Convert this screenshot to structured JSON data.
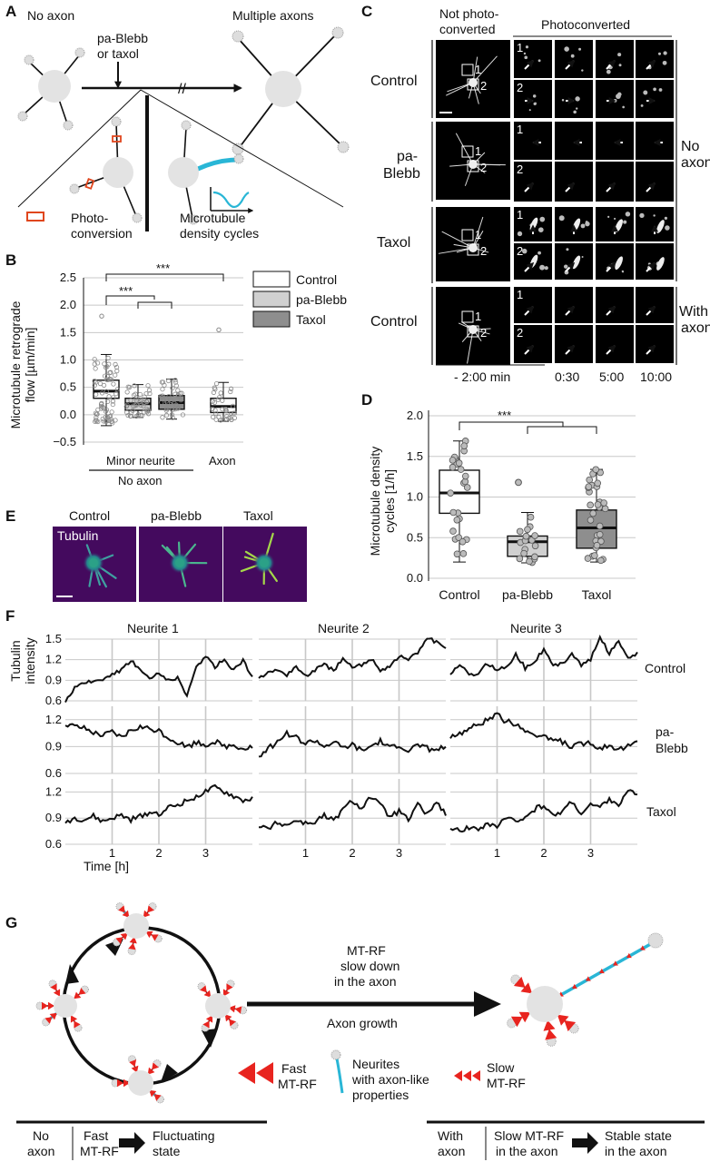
{
  "panels": {
    "A": {
      "letter": "A",
      "no_axon": "No axon",
      "drug": [
        "pa-Blebb",
        "or taxol"
      ],
      "multiple_axons": "Multiple axons",
      "photoconversion": [
        "Photo-",
        "conversion"
      ],
      "mt_density": [
        "Microtubule",
        "density cycles"
      ]
    },
    "B": {
      "letter": "B",
      "ylabel": [
        "Microtubule retrograde",
        "flow [µm/min]"
      ],
      "yticks": [
        "2.5",
        "2.0",
        "1.5",
        "1.0",
        "0.5",
        "0.0",
        "−0.5"
      ],
      "xlabel_minor": "Minor neurite",
      "xlabel_noaxon": "No axon",
      "xlabel_axon": "Axon",
      "sig": [
        "***",
        "***"
      ],
      "legend": [
        "Control",
        "pa-Blebb",
        "Taxol"
      ]
    },
    "C": {
      "letter": "C",
      "not_photo": [
        "Not photo-",
        "converted"
      ],
      "photo": "Photoconverted",
      "rows": [
        "Control",
        "pa-",
        "Blebb",
        "Taxol",
        "Control"
      ],
      "right": [
        "No",
        "axon",
        "With",
        "axon"
      ],
      "times": [
        "- 2:00  min",
        "0:30",
        "5:00",
        "10:00"
      ]
    },
    "D": {
      "letter": "D",
      "ylabel": [
        "Microtubule density",
        "cycles [1/h]"
      ],
      "yticks": [
        "2.0",
        "1.5",
        "1.0",
        "0.5",
        "0.0"
      ],
      "xticks": [
        "Control",
        "pa-Blebb",
        "Taxol"
      ],
      "sig": "***"
    },
    "E": {
      "letter": "E",
      "titles": [
        "Control",
        "pa-Blebb",
        "Taxol"
      ],
      "tubulin": "Tubulin"
    },
    "F": {
      "letter": "F",
      "columns": [
        "Neurite 1",
        "Neurite 2",
        "Neurite 3"
      ],
      "ylabel": [
        "Tubulin",
        "intensity"
      ],
      "yt_control": [
        "1.5",
        "1.2",
        "0.9",
        "0.6"
      ],
      "yt_blebb": [
        "1.2",
        "0.9",
        "0.6"
      ],
      "yt_taxol": [
        "1.2",
        "0.9",
        "0.6"
      ],
      "xticks": [
        "1",
        "2",
        "3"
      ],
      "xlabel": "Time [h]",
      "rows": [
        "Control",
        "pa-",
        "Blebb",
        "Taxol"
      ]
    },
    "G": {
      "letter": "G",
      "mtrf": [
        "MT-RF",
        "slow down",
        "in the axon"
      ],
      "axon_growth": "Axon growth",
      "fast": [
        "Fast",
        "MT-RF"
      ],
      "neurites": [
        "Neurites",
        "with axon-like",
        "properties"
      ],
      "slow": [
        "Slow",
        "MT-RF"
      ],
      "bottom_left": [
        "No",
        "axon",
        "Fast",
        "MT-RF",
        "Fluctuating",
        "state"
      ],
      "bottom_right": [
        "With",
        "axon",
        "Slow MT-RF",
        "in the axon",
        "Stable state",
        "in the axon"
      ]
    }
  },
  "colors": {
    "red": "#e8241f",
    "cyan": "#29b6d6",
    "grey": "#e0e0e0",
    "viridis_bg": "#440a5e"
  },
  "chart_data": [
    {
      "type": "box",
      "panel": "B",
      "ylabel": "Microtubule retrograde flow [µm/min]",
      "ylim": [
        -0.5,
        2.5
      ],
      "categories": [
        "Minor neurite Control",
        "Minor neurite pa-Blebb",
        "Minor neurite Taxol",
        "Axon Control"
      ],
      "q1": [
        0.3,
        0.08,
        0.1,
        0.04
      ],
      "median": [
        0.43,
        0.2,
        0.22,
        0.15
      ],
      "q3": [
        0.63,
        0.3,
        0.35,
        0.3
      ],
      "whisker_low": [
        -0.2,
        -0.05,
        -0.08,
        -0.12
      ],
      "whisker_high": [
        1.1,
        0.55,
        0.65,
        0.59
      ],
      "outliers_high": [
        1.8,
        null,
        null,
        1.55
      ]
    },
    {
      "type": "box",
      "panel": "D",
      "ylabel": "Microtubule density cycles [1/h]",
      "ylim": [
        0,
        2.0
      ],
      "categories": [
        "Control",
        "pa-Blebb",
        "Taxol"
      ],
      "q1": [
        0.8,
        0.27,
        0.37
      ],
      "median": [
        1.05,
        0.45,
        0.62
      ],
      "q3": [
        1.33,
        0.52,
        0.84
      ],
      "whisker_low": [
        0.2,
        0.19,
        0.2
      ],
      "whisker_high": [
        1.69,
        0.81,
        1.34
      ],
      "outliers_high": [
        null,
        1.18,
        null
      ]
    },
    {
      "type": "line",
      "panel": "F",
      "xlabel": "Time [h]",
      "ylabel": "Tubulin intensity",
      "x": [
        0.0,
        0.2,
        0.4,
        0.6,
        0.8,
        1.0,
        1.2,
        1.4,
        1.6,
        1.8,
        2.0,
        2.2,
        2.4,
        2.6,
        2.8,
        3.0,
        3.2,
        3.4,
        3.6,
        3.8,
        4.0
      ],
      "series": [
        {
          "name": "Control",
          "neurite": "Neurite 1",
          "values": [
            0.6,
            0.78,
            0.85,
            0.88,
            0.92,
            1.0,
            1.05,
            1.2,
            1.05,
            0.92,
            1.0,
            0.9,
            0.95,
            0.65,
            1.1,
            1.25,
            1.1,
            1.2,
            1.05,
            1.2,
            0.95
          ]
        },
        {
          "name": "Control",
          "neurite": "Neurite 2",
          "values": [
            0.95,
            1.0,
            1.05,
            0.98,
            1.1,
            0.95,
            1.05,
            1.12,
            1.05,
            1.2,
            1.08,
            1.12,
            1.22,
            1.05,
            1.1,
            1.25,
            1.2,
            1.3,
            1.52,
            1.45,
            1.35
          ]
        },
        {
          "name": "Control",
          "neurite": "Neurite 3",
          "values": [
            1.0,
            1.1,
            1.0,
            0.98,
            1.15,
            1.05,
            1.1,
            1.28,
            1.08,
            1.18,
            1.35,
            1.1,
            1.15,
            1.3,
            1.12,
            1.2,
            1.52,
            1.3,
            1.45,
            1.25,
            1.28
          ]
        },
        {
          "name": "pa-Blebb",
          "neurite": "Neurite 1",
          "values": [
            1.15,
            1.12,
            1.1,
            1.05,
            1.02,
            1.06,
            1.0,
            1.08,
            1.12,
            1.1,
            1.08,
            1.0,
            0.95,
            0.9,
            0.95,
            0.92,
            0.96,
            0.9,
            0.92,
            0.88,
            0.9
          ]
        },
        {
          "name": "pa-Blebb",
          "neurite": "Neurite 2",
          "values": [
            0.8,
            0.88,
            0.95,
            1.05,
            1.0,
            0.93,
            0.97,
            0.9,
            0.95,
            0.88,
            0.92,
            0.85,
            0.9,
            0.96,
            0.88,
            0.92,
            0.85,
            0.92,
            0.88,
            0.86,
            0.9
          ]
        },
        {
          "name": "pa-Blebb",
          "neurite": "Neurite 3",
          "values": [
            1.0,
            1.05,
            1.1,
            1.15,
            1.2,
            1.25,
            1.18,
            1.15,
            1.08,
            1.05,
            1.0,
            0.98,
            0.95,
            0.9,
            0.93,
            0.95,
            0.88,
            0.92,
            0.87,
            0.9,
            0.95
          ]
        },
        {
          "name": "Taxol",
          "neurite": "Neurite 1",
          "values": [
            0.85,
            0.9,
            0.88,
            0.92,
            0.86,
            0.9,
            0.93,
            0.88,
            0.92,
            0.97,
            0.95,
            1.02,
            1.05,
            1.1,
            1.15,
            1.2,
            1.25,
            1.2,
            1.15,
            1.1,
            1.12
          ]
        },
        {
          "name": "Taxol",
          "neurite": "Neurite 2",
          "values": [
            0.8,
            0.78,
            0.85,
            0.82,
            0.88,
            0.84,
            0.86,
            0.93,
            0.87,
            1.0,
            1.1,
            1.02,
            1.15,
            1.05,
            0.92,
            0.98,
            0.88,
            1.05,
            0.95,
            1.08,
            0.95
          ]
        },
        {
          "name": "Taxol",
          "neurite": "Neurite 3",
          "values": [
            0.78,
            0.75,
            0.8,
            0.78,
            0.83,
            0.8,
            0.9,
            0.85,
            0.92,
            1.0,
            1.05,
            0.92,
            0.98,
            1.1,
            0.95,
            1.05,
            1.02,
            1.12,
            1.05,
            1.2,
            1.18
          ]
        }
      ]
    }
  ]
}
